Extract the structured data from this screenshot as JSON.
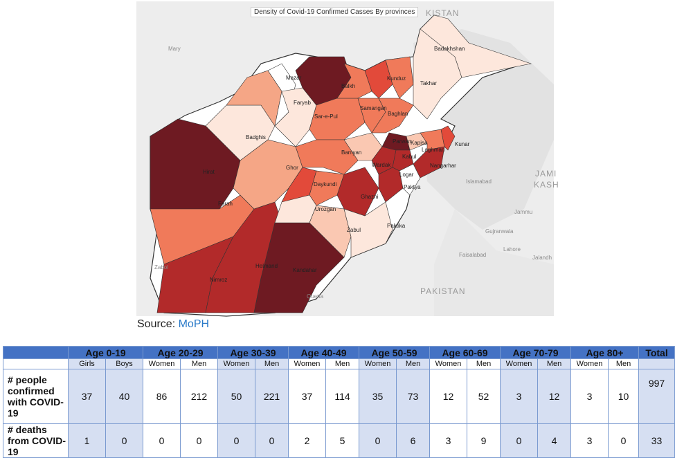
{
  "map": {
    "title": "Density of Covid-19 Confirmed Casses By provinces",
    "province_labels": [
      "Badakhshan",
      "Takhar",
      "Kunduz",
      "Balkh",
      "Samangan",
      "Baghlan",
      "Faryab",
      "Sar-e-Pul",
      "Badghis",
      "Bamyan",
      "Parwan",
      "Kapisa",
      "Laghman",
      "Kunar",
      "Kabul",
      "Nangarhar",
      "Wardak",
      "Logar",
      "Paktya",
      "Hirat",
      "Ghor",
      "Daykundi",
      "Ghazni",
      "Urozgan",
      "Farah",
      "Zabul",
      "Paktika",
      "Helmand",
      "Kandahar",
      "Nimroz",
      "Mazar"
    ],
    "background_labels": [
      "Mary",
      "Islamabad",
      "Jammu",
      "Gujranwala",
      "Lahore",
      "Faisalabad",
      "Zabol",
      "Quetta",
      "Jalandh"
    ],
    "country_labels": [
      "KISTAN",
      "PAKISTAN",
      "JAMI",
      "KASH"
    ],
    "colors": {
      "darkest": "#6e1a22",
      "dark": "#b22a2a",
      "red": "#e24a3a",
      "medium": "#f07a5a",
      "light": "#f5a686",
      "lighter": "#fac8b2",
      "lightest": "#fde7dc",
      "none": "#ffffff"
    }
  },
  "source": {
    "prefix": "Source: ",
    "link": "MoPH"
  },
  "table": {
    "age_groups": [
      "Age 0-19",
      "Age 20-29",
      "Age 30-39",
      "Age 40-49",
      "Age 50-59",
      "Age 60-69",
      "Age 70-79",
      "Age 80+"
    ],
    "total_label": "Total",
    "sub_headers": [
      "Girls",
      "Boys",
      "Women",
      "Men",
      "Women",
      "Men",
      "Women",
      "Men",
      "Women",
      "Men",
      "Women",
      "Men",
      "Women",
      "Men",
      "Women",
      "Men"
    ],
    "rows": [
      {
        "label": "# people confirmed with COVID-19",
        "values": [
          "37",
          "40",
          "86",
          "212",
          "50",
          "221",
          "37",
          "114",
          "35",
          "73",
          "12",
          "52",
          "3",
          "12",
          "3",
          "10"
        ],
        "total": "997"
      },
      {
        "label": "# deaths from COVID-19",
        "values": [
          "1",
          "0",
          "0",
          "0",
          "0",
          "0",
          "2",
          "5",
          "0",
          "6",
          "3",
          "9",
          "0",
          "4",
          "3",
          "0"
        ],
        "total": "33"
      }
    ]
  }
}
